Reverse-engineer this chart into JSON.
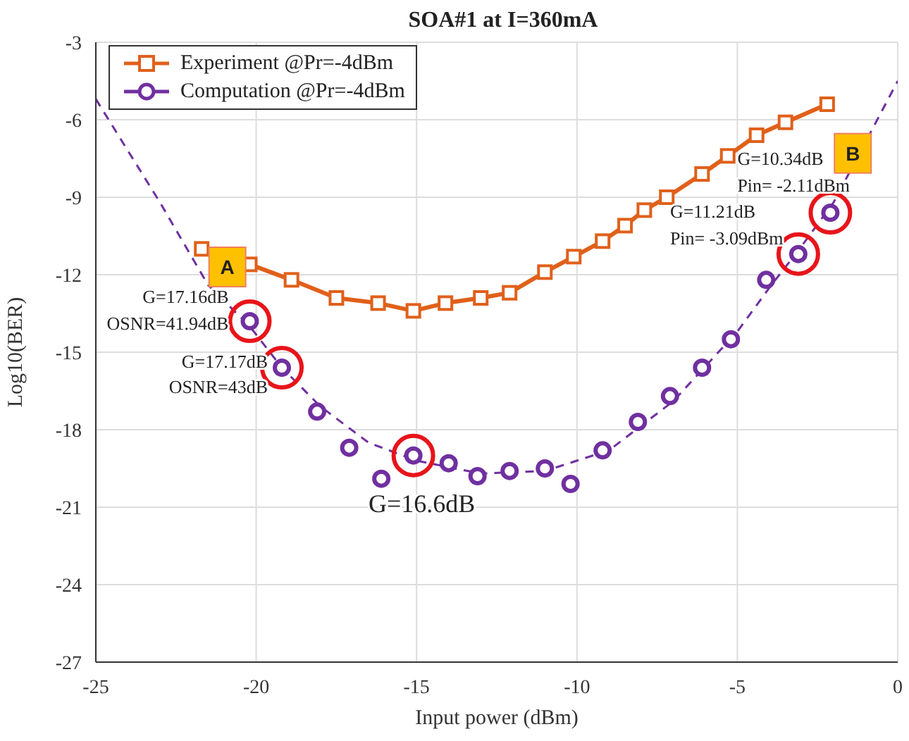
{
  "chart_data": {
    "type": "line",
    "title": "SOA#1 at I=360mA",
    "xlabel": "Input power (dBm)",
    "ylabel": "Log10(BER)",
    "xlim": [
      -25,
      0
    ],
    "xticks": [
      -25,
      -20,
      -15,
      -10,
      -5,
      0
    ],
    "ylim": [
      -27,
      -3
    ],
    "yticks": [
      -27,
      -24,
      -21,
      -18,
      -15,
      -12,
      -9,
      -6,
      -3
    ],
    "grid": true,
    "legend": "top left",
    "series": [
      {
        "name": "Experiment @Pr=-4dBm",
        "color": "#e0601a",
        "marker": "square",
        "line_style": "solid",
        "x": [
          -21.7,
          -20.2,
          -18.9,
          -17.5,
          -16.2,
          -15.1,
          -14.1,
          -13.0,
          -12.1,
          -11.0,
          -10.1,
          -9.2,
          -8.5,
          -7.9,
          -7.2,
          -6.1,
          -5.3,
          -4.4,
          -3.5,
          -2.2
        ],
        "values": [
          -11.0,
          -11.6,
          -12.2,
          -12.9,
          -13.1,
          -13.4,
          -13.1,
          -12.9,
          -12.7,
          -11.9,
          -11.3,
          -10.7,
          -10.1,
          -9.5,
          -9.0,
          -8.1,
          -7.4,
          -6.6,
          -6.1,
          -5.4
        ]
      },
      {
        "name": "Computation @Pr=-4dBm",
        "type": "scatter",
        "color": "#7030a0",
        "marker": "circle",
        "x": [
          -20.2,
          -19.2,
          -18.1,
          -17.1,
          -16.1,
          -15.1,
          -14.0,
          -13.1,
          -12.1,
          -11.0,
          -10.2,
          -9.2,
          -8.1,
          -7.1,
          -6.1,
          -5.2,
          -4.1,
          -3.1,
          -2.1
        ],
        "values": [
          -13.8,
          -15.6,
          -17.3,
          -18.7,
          -19.9,
          -19.0,
          -19.3,
          -19.8,
          -19.6,
          -19.5,
          -20.1,
          -18.8,
          -17.7,
          -16.7,
          -15.6,
          -14.5,
          -12.2,
          -11.2,
          -9.6
        ]
      },
      {
        "color": "#7030a0",
        "marker": "none",
        "line_style": "dashed",
        "x": [
          -25,
          -23,
          -21.5,
          -20.2,
          -19.2,
          -18,
          -16.5,
          -15,
          -13,
          -11,
          -9,
          -7,
          -5,
          -4,
          -3,
          -2,
          0
        ],
        "values": [
          -5.2,
          -9.2,
          -12.4,
          -14.0,
          -15.6,
          -17.1,
          -18.5,
          -19.2,
          -19.7,
          -19.6,
          -18.8,
          -16.9,
          -14.2,
          -12.5,
          -10.9,
          -9.2,
          -4.5
        ]
      }
    ],
    "annotations": [
      {
        "text": "G=17.16dB\nOSNR=41.94dB",
        "x": -20.2,
        "y": -13.8
      },
      {
        "text": "G=17.17dB\nOSNR=43dB",
        "x": -19.2,
        "y": -15.6
      },
      {
        "text": "G=16.6dB",
        "x": -15.1,
        "y": -19.0
      },
      {
        "text": "G=11.21dB\nPin= -3.09dBm",
        "x": -3.1,
        "y": -11.2
      },
      {
        "text": "G=10.34dB\nPin= -2.11dBm",
        "x": -2.1,
        "y": -9.6
      },
      {
        "text": "A",
        "x": -20.9,
        "y": -11.7
      },
      {
        "text": "B",
        "x": -1.4,
        "y": -7.3
      }
    ]
  }
}
